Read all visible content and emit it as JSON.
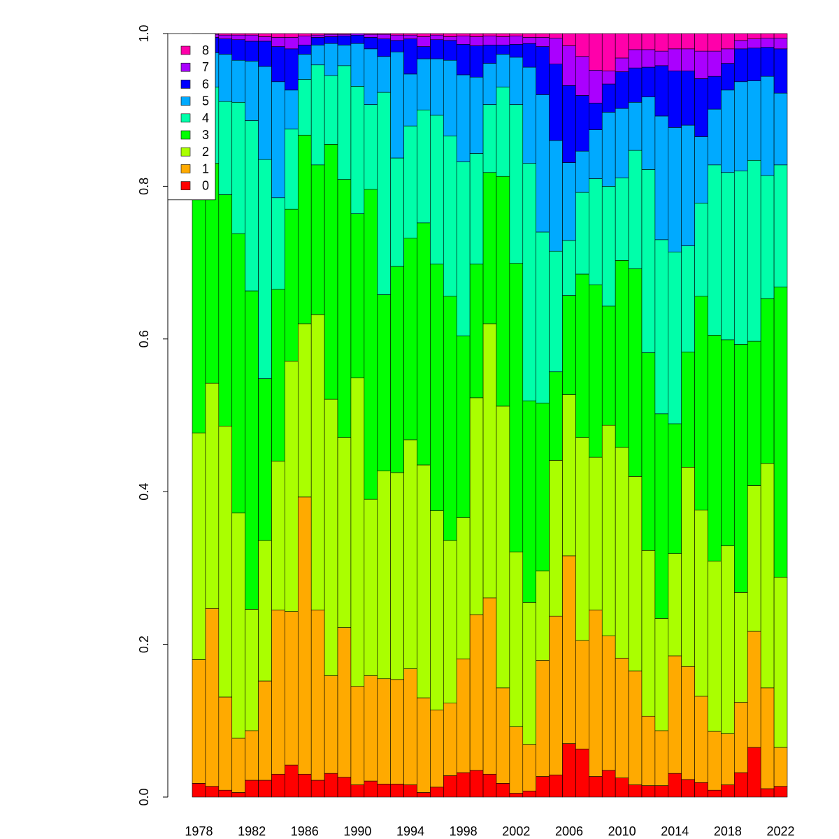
{
  "chart_data": {
    "type": "stacked_bar",
    "categories": [
      1978,
      null,
      null,
      null,
      1982,
      null,
      null,
      null,
      1986,
      null,
      null,
      null,
      1990,
      null,
      null,
      null,
      1994,
      null,
      null,
      null,
      1998,
      null,
      null,
      null,
      2002,
      null,
      null,
      null,
      2006,
      null,
      null,
      null,
      2010,
      null,
      null,
      null,
      2014,
      null,
      null,
      null,
      2018,
      null,
      null,
      null,
      2022
    ],
    "ylim": [
      0,
      1
    ],
    "yticks": [
      {
        "value": 0,
        "label": "0.0"
      },
      0.2,
      0.4,
      0.6,
      0.8,
      {
        "value": 1,
        "label": "1.0"
      }
    ],
    "legend": "topleft",
    "series": [
      {
        "name": "0",
        "color": "#ff0000",
        "values": [
          0.018,
          0.014,
          0.009,
          0.006,
          0.022,
          0.022,
          0.03,
          0.042,
          0.03,
          0.022,
          0.031,
          0.026,
          0.016,
          0.021,
          0.017,
          0.017,
          0.016,
          0.006,
          0.013,
          0.028,
          0.032,
          0.035,
          0.03,
          0.018,
          0.005,
          0.008,
          0.027,
          0.029,
          0.07,
          0.063,
          0.027,
          0.035,
          0.025,
          0.016,
          0.015,
          0.015,
          0.031,
          0.023,
          0.019,
          0.009,
          0.016,
          0.032,
          0.065,
          0.011,
          0.014
        ]
      },
      {
        "name": "1",
        "color": "#ffaa00",
        "values": [
          0.162,
          0.233,
          0.122,
          0.071,
          0.065,
          0.13,
          0.215,
          0.201,
          0.363,
          0.223,
          0.128,
          0.196,
          0.129,
          0.138,
          0.138,
          0.137,
          0.152,
          0.124,
          0.101,
          0.095,
          0.149,
          0.204,
          0.231,
          0.125,
          0.087,
          0.061,
          0.152,
          0.208,
          0.246,
          0.142,
          0.218,
          0.176,
          0.157,
          0.149,
          0.091,
          0.072,
          0.154,
          0.148,
          0.113,
          0.077,
          0.067,
          0.092,
          0.152,
          0.132,
          0.051
        ]
      },
      {
        "name": "2",
        "color": "#aaff00",
        "values": [
          0.297,
          0.295,
          0.355,
          0.295,
          0.159,
          0.184,
          0.195,
          0.328,
          0.227,
          0.387,
          0.362,
          0.249,
          0.404,
          0.231,
          0.272,
          0.271,
          0.3,
          0.305,
          0.261,
          0.213,
          0.185,
          0.284,
          0.359,
          0.369,
          0.229,
          0.186,
          0.117,
          0.204,
          0.211,
          0.266,
          0.2,
          0.276,
          0.276,
          0.255,
          0.217,
          0.147,
          0.134,
          0.261,
          0.244,
          0.223,
          0.246,
          0.144,
          0.191,
          0.294,
          0.223
        ]
      },
      {
        "name": "3",
        "color": "#00ff00",
        "values": [
          0.353,
          0.288,
          0.303,
          0.366,
          0.417,
          0.212,
          0.225,
          0.199,
          0.247,
          0.196,
          0.334,
          0.338,
          0.215,
          0.406,
          0.231,
          0.27,
          0.264,
          0.317,
          0.323,
          0.32,
          0.238,
          0.175,
          0.198,
          0.301,
          0.378,
          0.264,
          0.22,
          0.116,
          0.13,
          0.214,
          0.226,
          0.156,
          0.245,
          0.272,
          0.259,
          0.268,
          0.17,
          0.151,
          0.28,
          0.296,
          0.27,
          0.325,
          0.189,
          0.216,
          0.38
        ]
      },
      {
        "name": "4",
        "color": "#00ffaa",
        "values": [
          0.1,
          0.1,
          0.122,
          0.172,
          0.223,
          0.287,
          0.12,
          0.105,
          0.073,
          0.131,
          0.09,
          0.149,
          0.167,
          0.111,
          0.265,
          0.142,
          0.147,
          0.148,
          0.195,
          0.21,
          0.228,
          0.145,
          0.089,
          0.117,
          0.208,
          0.311,
          0.224,
          0.158,
          0.072,
          0.107,
          0.139,
          0.157,
          0.108,
          0.155,
          0.24,
          0.228,
          0.225,
          0.139,
          0.122,
          0.223,
          0.219,
          0.227,
          0.237,
          0.161,
          0.16
        ]
      },
      {
        "name": "5",
        "color": "#00aaff",
        "values": [
          0.04,
          0.045,
          0.062,
          0.055,
          0.078,
          0.122,
          0.152,
          0.051,
          0.033,
          0.026,
          0.042,
          0.027,
          0.056,
          0.073,
          0.047,
          0.139,
          0.068,
          0.067,
          0.074,
          0.099,
          0.114,
          0.1,
          0.054,
          0.043,
          0.062,
          0.126,
          0.18,
          0.145,
          0.102,
          0.054,
          0.064,
          0.097,
          0.091,
          0.063,
          0.095,
          0.162,
          0.163,
          0.158,
          0.087,
          0.073,
          0.108,
          0.117,
          0.104,
          0.13,
          0.094
        ]
      },
      {
        "name": "6",
        "color": "#0000ff",
        "values": [
          0.02,
          0.02,
          0.02,
          0.027,
          0.026,
          0.033,
          0.046,
          0.054,
          0.012,
          0.01,
          0.009,
          0.012,
          0.011,
          0.015,
          0.023,
          0.015,
          0.046,
          0.016,
          0.025,
          0.026,
          0.04,
          0.041,
          0.024,
          0.012,
          0.017,
          0.031,
          0.063,
          0.1,
          0.101,
          0.073,
          0.035,
          0.037,
          0.048,
          0.045,
          0.039,
          0.066,
          0.074,
          0.071,
          0.076,
          0.043,
          0.035,
          0.043,
          0.043,
          0.038,
          0.058
        ]
      },
      {
        "name": "7",
        "color": "#aa00ff",
        "values": [
          0.008,
          0.004,
          0.005,
          0.006,
          0.008,
          0.006,
          0.012,
          0.015,
          0.012,
          0.003,
          0.003,
          0.002,
          0.002,
          0.004,
          0.006,
          0.007,
          0.005,
          0.013,
          0.006,
          0.005,
          0.011,
          0.012,
          0.012,
          0.011,
          0.011,
          0.008,
          0.012,
          0.034,
          0.052,
          0.051,
          0.043,
          0.017,
          0.018,
          0.024,
          0.023,
          0.019,
          0.029,
          0.029,
          0.036,
          0.033,
          0.019,
          0.011,
          0.012,
          0.012,
          0.014
        ]
      },
      {
        "name": "8",
        "color": "#ff00aa",
        "values": [
          0.002,
          0.001,
          0.002,
          0.002,
          0.002,
          0.004,
          0.005,
          0.005,
          0.003,
          0.002,
          0.001,
          0.001,
          0,
          0.001,
          0.001,
          0.002,
          0.002,
          0.004,
          0.002,
          0.004,
          0.003,
          0.004,
          0.003,
          0.004,
          0.003,
          0.005,
          0.005,
          0.006,
          0.016,
          0.03,
          0.048,
          0.049,
          0.032,
          0.021,
          0.021,
          0.023,
          0.02,
          0.02,
          0.023,
          0.023,
          0.02,
          0.009,
          0.007,
          0.006,
          0.006
        ]
      }
    ]
  }
}
